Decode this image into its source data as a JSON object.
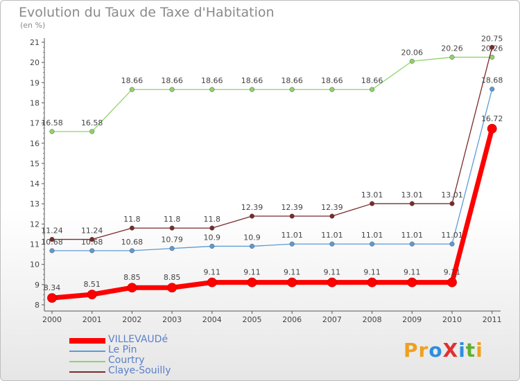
{
  "title": "Evolution du Taux de Taxe d'Habitation",
  "subtitle": "(en %)",
  "logo": {
    "text": "ProXiti",
    "letters": [
      "P",
      "r",
      "o",
      "X",
      "i",
      "t",
      "i"
    ],
    "colors": [
      "#f0a020",
      "#f0a020",
      "#2e8de0",
      "#e03030",
      "#2e8de0",
      "#60b030",
      "#f0a020"
    ]
  },
  "chart_data": {
    "type": "line",
    "x": [
      "2000",
      "2001",
      "2002",
      "2003",
      "2004",
      "2005",
      "2006",
      "2007",
      "2008",
      "2009",
      "2010",
      "2011"
    ],
    "ylim": [
      8,
      21
    ],
    "yticks": [
      "8",
      "9",
      "10",
      "11",
      "12",
      "13",
      "14",
      "15",
      "16",
      "17",
      "18",
      "19",
      "20",
      "21"
    ],
    "grid": false,
    "legend_position": "bottom-left",
    "series": [
      {
        "name": "Courtry",
        "color": "#8ed36a",
        "values": [
          16.58,
          16.58,
          18.66,
          18.66,
          18.66,
          18.66,
          18.66,
          18.66,
          18.66,
          20.06,
          20.26,
          20.26
        ],
        "labels": [
          "16.58",
          "16.58",
          "18.66",
          "18.66",
          "18.66",
          "18.66",
          "18.66",
          "18.66",
          "18.66",
          "20.06",
          "20.26",
          "20.26"
        ]
      },
      {
        "name": "Claye-Souilly",
        "color": "#7a2a2a",
        "values": [
          11.24,
          11.24,
          11.8,
          11.8,
          11.8,
          12.39,
          12.39,
          12.39,
          13.01,
          13.01,
          13.01,
          20.75
        ],
        "labels": [
          "11.24",
          "11.24",
          "11.8",
          "11.8",
          "11.8",
          "12.39",
          "12.39",
          "12.39",
          "13.01",
          "13.01",
          "13.01",
          "20.75"
        ]
      },
      {
        "name": "Le Pin",
        "color": "#5b9bd5",
        "values": [
          10.68,
          10.68,
          10.68,
          10.79,
          10.9,
          10.9,
          11.01,
          11.01,
          11.01,
          11.01,
          11.01,
          18.68
        ],
        "labels": [
          "10.68",
          "10.68",
          "10.68",
          "10.79",
          "10.9",
          "10.9",
          "11.01",
          "11.01",
          "11.01",
          "11.01",
          "11.01",
          "18.68"
        ]
      },
      {
        "name": "VILLEVAUDé",
        "color": "#ff0000",
        "values": [
          8.34,
          8.51,
          8.85,
          8.85,
          9.11,
          9.11,
          9.11,
          9.11,
          9.11,
          9.11,
          9.11,
          16.72
        ],
        "labels": [
          "8.34",
          "8.51",
          "8.85",
          "8.85",
          "9.11",
          "9.11",
          "9.11",
          "9.11",
          "9.11",
          "9.11",
          "9.11",
          "16.72"
        ]
      }
    ],
    "legend": [
      "VILLEVAUDé",
      "Le Pin",
      "Courtry",
      "Claye-Souilly"
    ]
  }
}
